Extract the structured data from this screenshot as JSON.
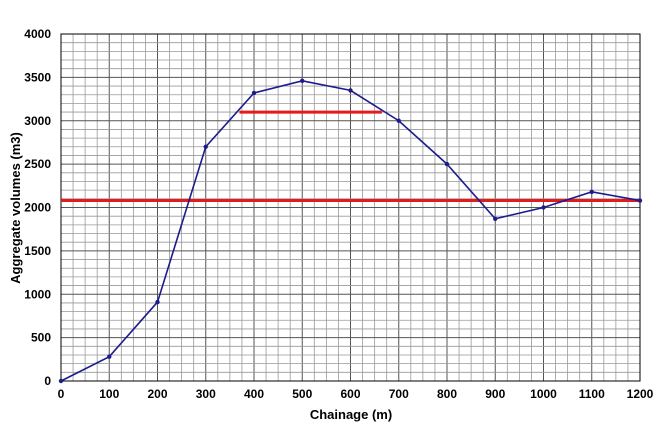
{
  "chart_data": {
    "type": "line",
    "xlabel": "Chainage (m)",
    "ylabel": "Aggregate volumes (m3)",
    "xlim": [
      0,
      1200
    ],
    "ylim": [
      0,
      4000
    ],
    "x_major_ticks": [
      0,
      100,
      200,
      300,
      400,
      500,
      600,
      700,
      800,
      900,
      1000,
      1100,
      1200
    ],
    "y_major_ticks": [
      0,
      500,
      1000,
      1500,
      2000,
      2500,
      3000,
      3500,
      4000
    ],
    "x_minor_step": 25,
    "y_minor_step": 100,
    "grid": true,
    "series": [
      {
        "color": "#1c1c8c",
        "x": [
          0,
          100,
          200,
          300,
          400,
          500,
          600,
          700,
          800,
          900,
          1000,
          1100,
          1200
        ],
        "y": [
          0,
          280,
          910,
          2700,
          3320,
          3460,
          3350,
          3000,
          2500,
          1870,
          2000,
          2180,
          2080
        ]
      }
    ],
    "reference_lines": [
      {
        "color": "#e31b1b",
        "y": 2080,
        "x_start": 0,
        "x_end": 1200
      },
      {
        "color": "#e31b1b",
        "y": 3100,
        "x_start": 370,
        "x_end": 665
      }
    ]
  }
}
